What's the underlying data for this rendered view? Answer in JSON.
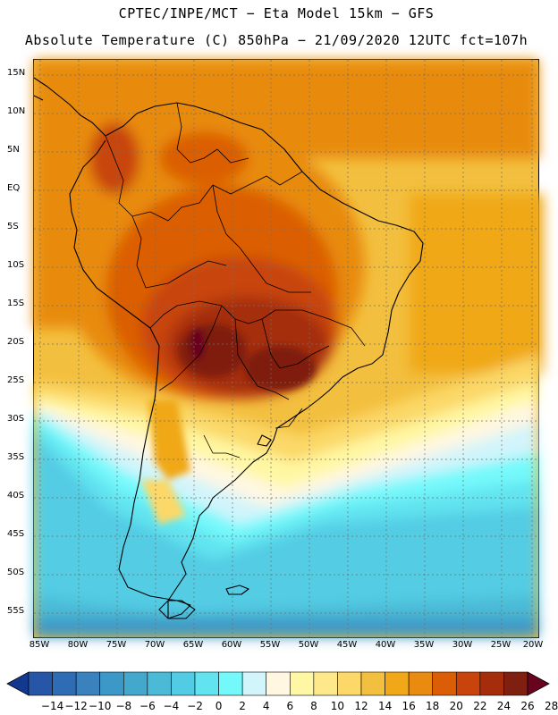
{
  "title_line1": "CPTEC/INPE/MCT −  Eta Model 15km − GFS",
  "title_line2": "Absolute Temperature (C) 850hPa − 21/09/2020 12UTC fct=107h",
  "lat_labels": [
    "15N",
    "10N",
    "5N",
    "EQ",
    "5S",
    "10S",
    "15S",
    "20S",
    "25S",
    "30S",
    "35S",
    "40S",
    "45S",
    "50S",
    "55S"
  ],
  "lon_labels": [
    "85W",
    "80W",
    "75W",
    "70W",
    "65W",
    "60W",
    "55W",
    "50W",
    "45W",
    "40W",
    "35W",
    "30W",
    "25W",
    "20W"
  ],
  "colorbar": {
    "labels": [
      "−14",
      "−12",
      "−10",
      "−8",
      "−6",
      "−4",
      "−2",
      "0",
      "2",
      "4",
      "6",
      "8",
      "10",
      "12",
      "14",
      "16",
      "18",
      "20",
      "22",
      "24",
      "26",
      "28"
    ],
    "colors": [
      "#13388f",
      "#2856a6",
      "#2e6db4",
      "#3a82be",
      "#3c98c6",
      "#42a8cc",
      "#4bbad6",
      "#52cce4",
      "#62e4f0",
      "#74f9fb",
      "#d2f4fb",
      "#fff7e2",
      "#fff7a3",
      "#fee98a",
      "#fbd867",
      "#f3bf3f",
      "#f0a819",
      "#e88b10",
      "#db5e06",
      "#c8440a",
      "#a52d0b",
      "#7f1f0f",
      "#69041f"
    ]
  },
  "icons": [
    "colorbar-left-arrow-icon",
    "colorbar-right-arrow-icon"
  ]
}
